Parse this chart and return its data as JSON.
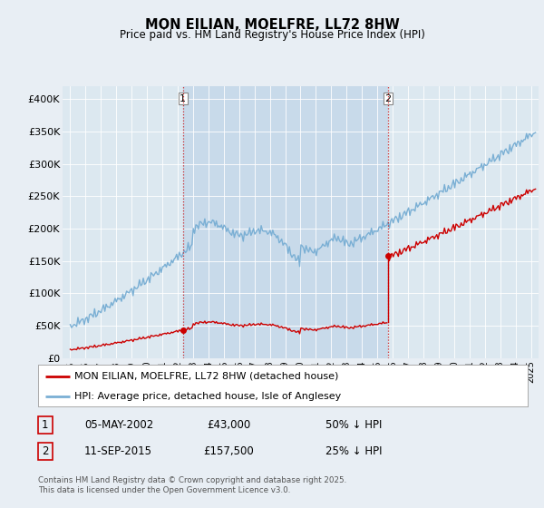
{
  "title": "MON EILIAN, MOELFRE, LL72 8HW",
  "subtitle": "Price paid vs. HM Land Registry's House Price Index (HPI)",
  "legend_label_red": "MON EILIAN, MOELFRE, LL72 8HW (detached house)",
  "legend_label_blue": "HPI: Average price, detached house, Isle of Anglesey",
  "annotation1_date": "05-MAY-2002",
  "annotation1_price": "£43,000",
  "annotation1_hpi": "50% ↓ HPI",
  "annotation2_date": "11-SEP-2015",
  "annotation2_price": "£157,500",
  "annotation2_hpi": "25% ↓ HPI",
  "footer": "Contains HM Land Registry data © Crown copyright and database right 2025.\nThis data is licensed under the Open Government Licence v3.0.",
  "ylim": [
    0,
    420000
  ],
  "yticks": [
    0,
    50000,
    100000,
    150000,
    200000,
    250000,
    300000,
    350000,
    400000
  ],
  "ytick_labels": [
    "£0",
    "£50K",
    "£100K",
    "£150K",
    "£200K",
    "£250K",
    "£300K",
    "£350K",
    "£400K"
  ],
  "color_red": "#cc0000",
  "color_blue": "#7aafd4",
  "color_vline": "#cc0000",
  "bg_color": "#e8eef4",
  "plot_bg": "#dce8f0",
  "between_bg": "#c8daea"
}
